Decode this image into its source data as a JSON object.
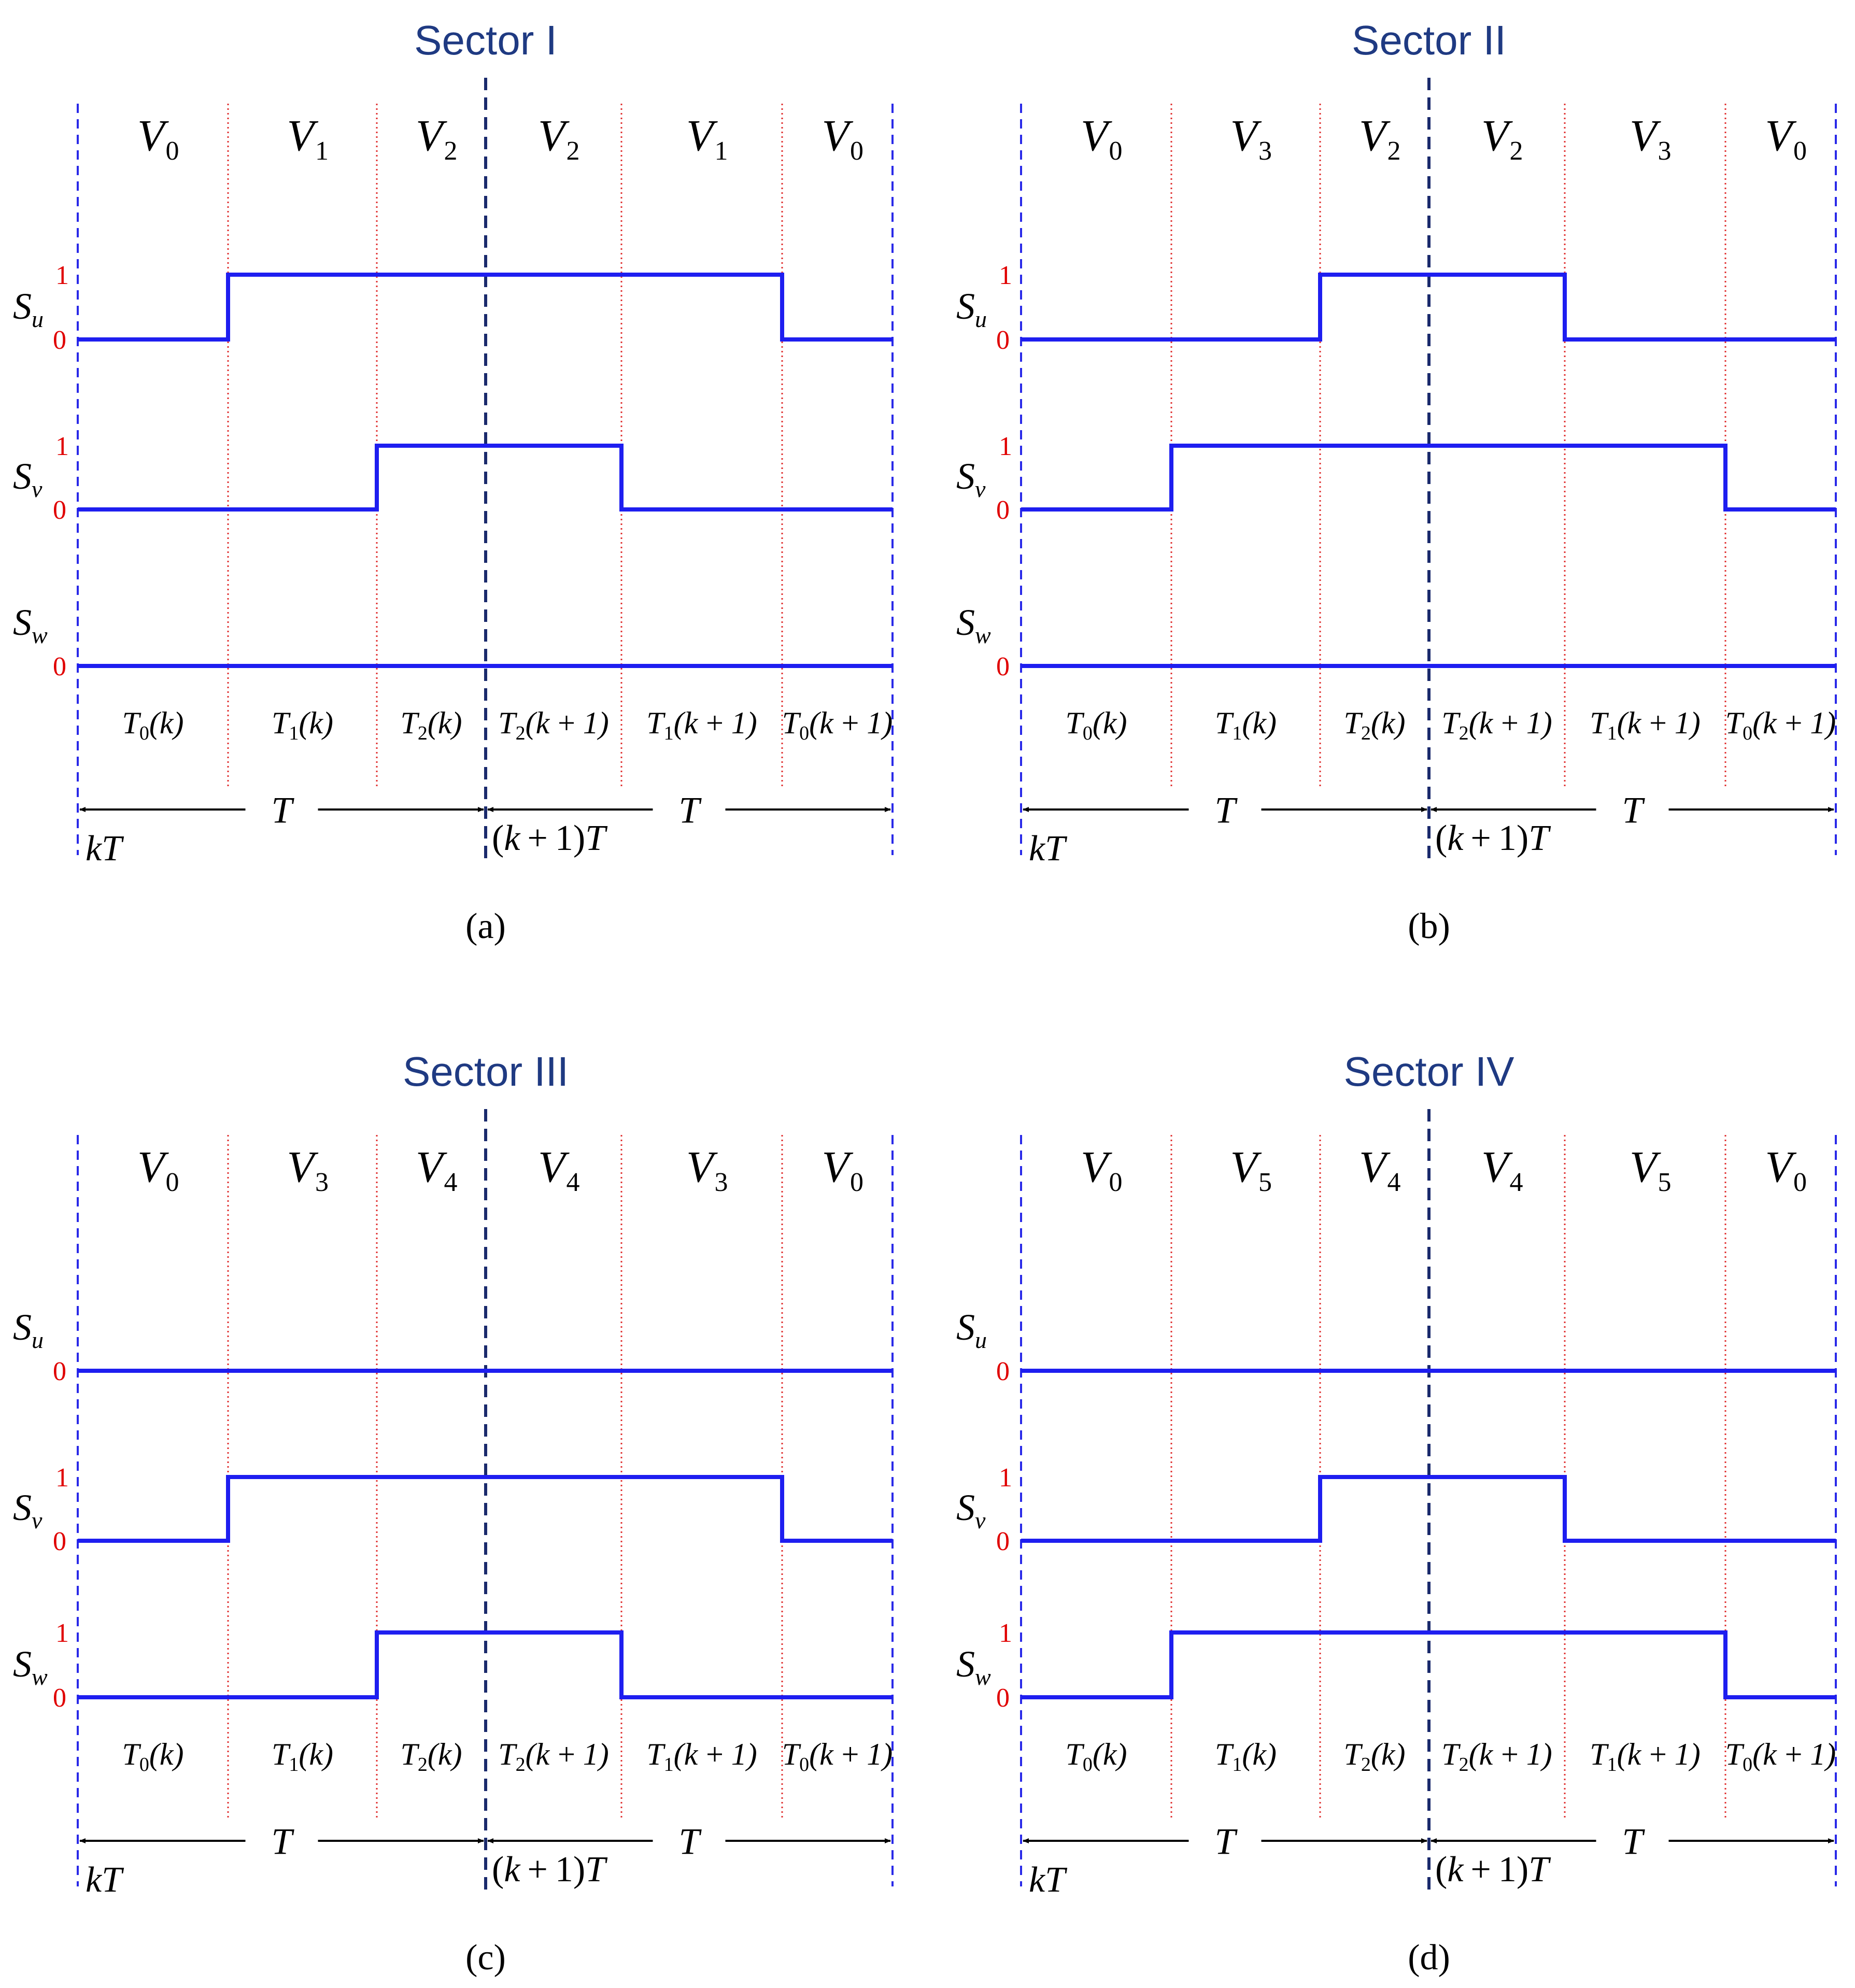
{
  "colors": {
    "title": "#1f3a82",
    "waveform": "#1e1ef0",
    "boundary": "#2a2ae8",
    "divider": "#e03030",
    "center": "#1a2a6c",
    "level": "#e00000"
  },
  "period_label": "T",
  "start_label": "kT",
  "mid_label": "(k+1)T",
  "signals": [
    {
      "base": "S",
      "sub": "u"
    },
    {
      "base": "S",
      "sub": "v"
    },
    {
      "base": "S",
      "sub": "w"
    }
  ],
  "panels": [
    {
      "caption": "(a)",
      "title": "Sector I",
      "vectors": [
        {
          "base": "V",
          "sub": "0"
        },
        {
          "base": "V",
          "sub": "1"
        },
        {
          "base": "V",
          "sub": "2"
        },
        {
          "base": "V",
          "sub": "2"
        },
        {
          "base": "V",
          "sub": "1"
        },
        {
          "base": "V",
          "sub": "0"
        }
      ],
      "intervals": [
        {
          "base": "T",
          "sub": "0",
          "arg": "(k)"
        },
        {
          "base": "T",
          "sub": "1",
          "arg": "(k)"
        },
        {
          "base": "T",
          "sub": "2",
          "arg": "(k)"
        },
        {
          "base": "T",
          "sub": "2",
          "arg": "(k+1)"
        },
        {
          "base": "T",
          "sub": "1",
          "arg": "(k+1)"
        },
        {
          "base": "T",
          "sub": "0",
          "arg": "(k+1)"
        }
      ],
      "waveforms": [
        {
          "signal": "S_u",
          "levels": [
            0,
            1,
            1,
            1,
            1,
            0
          ]
        },
        {
          "signal": "S_v",
          "levels": [
            0,
            0,
            1,
            1,
            0,
            0
          ]
        },
        {
          "signal": "S_w",
          "levels": [
            0,
            0,
            0,
            0,
            0,
            0
          ]
        }
      ]
    },
    {
      "caption": "(b)",
      "title": "Sector II",
      "vectors": [
        {
          "base": "V",
          "sub": "0"
        },
        {
          "base": "V",
          "sub": "3"
        },
        {
          "base": "V",
          "sub": "2"
        },
        {
          "base": "V",
          "sub": "2"
        },
        {
          "base": "V",
          "sub": "3"
        },
        {
          "base": "V",
          "sub": "0"
        }
      ],
      "intervals": [
        {
          "base": "T",
          "sub": "0",
          "arg": "(k)"
        },
        {
          "base": "T",
          "sub": "1",
          "arg": "(k)"
        },
        {
          "base": "T",
          "sub": "2",
          "arg": "(k)"
        },
        {
          "base": "T",
          "sub": "2",
          "arg": "(k+1)"
        },
        {
          "base": "T",
          "sub": "1",
          "arg": "(k+1)"
        },
        {
          "base": "T",
          "sub": "0",
          "arg": "(k+1)"
        }
      ],
      "waveforms": [
        {
          "signal": "S_u",
          "levels": [
            0,
            0,
            1,
            1,
            0,
            0
          ]
        },
        {
          "signal": "S_v",
          "levels": [
            0,
            1,
            1,
            1,
            1,
            0
          ]
        },
        {
          "signal": "S_w",
          "levels": [
            0,
            0,
            0,
            0,
            0,
            0
          ]
        }
      ]
    },
    {
      "caption": "(c)",
      "title": "Sector III",
      "vectors": [
        {
          "base": "V",
          "sub": "0"
        },
        {
          "base": "V",
          "sub": "3"
        },
        {
          "base": "V",
          "sub": "4"
        },
        {
          "base": "V",
          "sub": "4"
        },
        {
          "base": "V",
          "sub": "3"
        },
        {
          "base": "V",
          "sub": "0"
        }
      ],
      "intervals": [
        {
          "base": "T",
          "sub": "0",
          "arg": "(k)"
        },
        {
          "base": "T",
          "sub": "1",
          "arg": "(k)"
        },
        {
          "base": "T",
          "sub": "2",
          "arg": "(k)"
        },
        {
          "base": "T",
          "sub": "2",
          "arg": "(k+1)"
        },
        {
          "base": "T",
          "sub": "1",
          "arg": "(k+1)"
        },
        {
          "base": "T",
          "sub": "0",
          "arg": "(k+1)"
        }
      ],
      "waveforms": [
        {
          "signal": "S_u",
          "levels": [
            0,
            0,
            0,
            0,
            0,
            0
          ]
        },
        {
          "signal": "S_v",
          "levels": [
            0,
            1,
            1,
            1,
            1,
            0
          ]
        },
        {
          "signal": "S_w",
          "levels": [
            0,
            0,
            1,
            1,
            0,
            0
          ]
        }
      ]
    },
    {
      "caption": "(d)",
      "title": "Sector IV",
      "vectors": [
        {
          "base": "V",
          "sub": "0"
        },
        {
          "base": "V",
          "sub": "5"
        },
        {
          "base": "V",
          "sub": "4"
        },
        {
          "base": "V",
          "sub": "4"
        },
        {
          "base": "V",
          "sub": "5"
        },
        {
          "base": "V",
          "sub": "0"
        }
      ],
      "intervals": [
        {
          "base": "T",
          "sub": "0",
          "arg": "(k)"
        },
        {
          "base": "T",
          "sub": "1",
          "arg": "(k)"
        },
        {
          "base": "T",
          "sub": "2",
          "arg": "(k)"
        },
        {
          "base": "T",
          "sub": "2",
          "arg": "(k+1)"
        },
        {
          "base": "T",
          "sub": "1",
          "arg": "(k+1)"
        },
        {
          "base": "T",
          "sub": "0",
          "arg": "(k+1)"
        }
      ],
      "waveforms": [
        {
          "signal": "S_u",
          "levels": [
            0,
            0,
            0,
            0,
            0,
            0
          ]
        },
        {
          "signal": "S_v",
          "levels": [
            0,
            0,
            1,
            1,
            0,
            0
          ]
        },
        {
          "signal": "S_w",
          "levels": [
            0,
            1,
            1,
            1,
            1,
            0
          ]
        }
      ]
    }
  ]
}
